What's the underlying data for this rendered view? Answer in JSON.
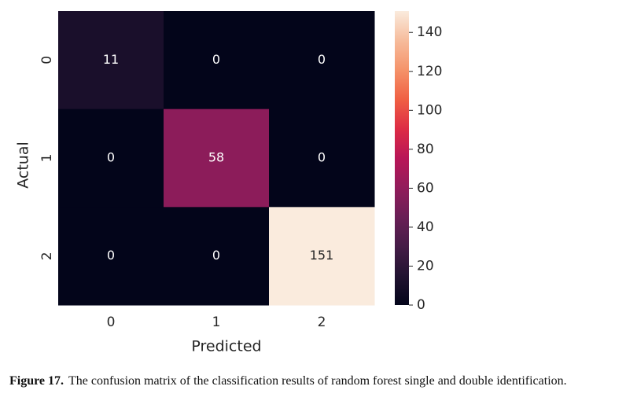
{
  "chart_data": {
    "type": "heatmap",
    "x_categories": [
      "0",
      "1",
      "2"
    ],
    "y_categories": [
      "0",
      "1",
      "2"
    ],
    "values": [
      [
        11,
        0,
        0
      ],
      [
        0,
        58,
        0
      ],
      [
        0,
        0,
        151
      ]
    ],
    "xlabel": "Predicted",
    "ylabel": "Actual",
    "colorbar_lim": [
      0,
      151
    ],
    "colorbar_ticks": [
      0,
      20,
      40,
      60,
      80,
      100,
      120,
      140
    ],
    "colormap": [
      "#03051a",
      "#221331",
      "#451c47",
      "#6a1f56",
      "#921c5b",
      "#b91657",
      "#dd2c45",
      "#f06043",
      "#f5936a",
      "#f6bc9c",
      "#faebdd"
    ]
  },
  "caption": {
    "label": "Figure 17.",
    "text": "The confusion matrix of the classification results of random forest single and double identification."
  }
}
